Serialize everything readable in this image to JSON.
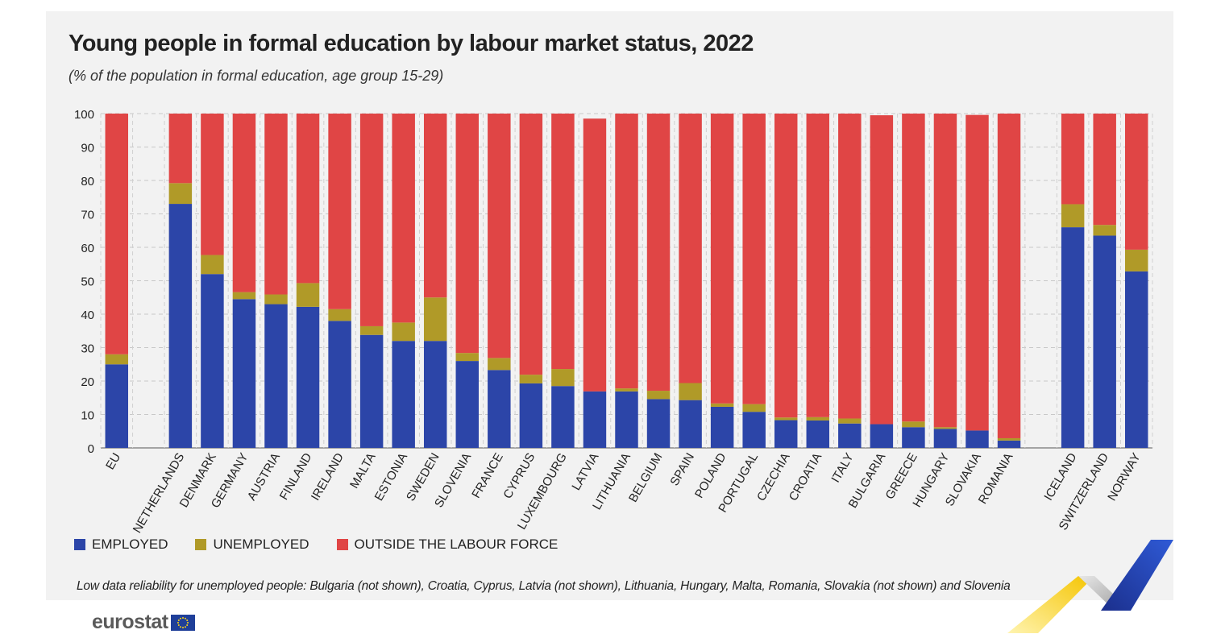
{
  "title": "Young people in formal education by labour market status, 2022",
  "subtitle": "(% of the population in formal education, age group 15-29)",
  "legend": {
    "employed": "EMPLOYED",
    "unemployed": "UNEMPLOYED",
    "outside": "OUTSIDE THE LABOUR FORCE"
  },
  "note": "Low data reliability for unemployed people: Bulgaria (not shown), Croatia, Cyprus, Latvia (not shown), Lithuania, Hungary, Malta, Romania, Slovakia (not shown) and Slovenia",
  "logo": {
    "text": "eurostat",
    "flag_icon": "eu-flag-icon"
  },
  "colors": {
    "employed": "#2c45a8",
    "unemployed": "#b09a28",
    "outside": "#e04545"
  },
  "chart_data": {
    "type": "bar",
    "stacked": true,
    "categories": [
      "EU",
      "NETHERLANDS",
      "DENMARK",
      "GERMANY",
      "AUSTRIA",
      "FINLAND",
      "IRELAND",
      "MALTA",
      "ESTONIA",
      "SWEDEN",
      "SLOVENIA",
      "FRANCE",
      "CYPRUS",
      "LUXEMBOURG",
      "LATVIA",
      "LITHUANIA",
      "BELGIUM",
      "SPAIN",
      "POLAND",
      "PORTUGAL",
      "CZECHIA",
      "CROATIA",
      "ITALY",
      "BULGARIA",
      "GREECE",
      "HUNGARY",
      "SLOVAKIA",
      "ROMANIA",
      "ICELAND",
      "SWITZERLAND",
      "NORWAY"
    ],
    "groups": [
      [
        "EU"
      ],
      [
        "NETHERLANDS",
        "DENMARK",
        "GERMANY",
        "AUSTRIA",
        "FINLAND",
        "IRELAND",
        "MALTA",
        "ESTONIA",
        "SWEDEN",
        "SLOVENIA",
        "FRANCE",
        "CYPRUS",
        "LUXEMBOURG",
        "LATVIA",
        "LITHUANIA",
        "BELGIUM",
        "SPAIN",
        "POLAND",
        "PORTUGAL",
        "CZECHIA",
        "CROATIA",
        "ITALY",
        "BULGARIA",
        "GREECE",
        "HUNGARY",
        "SLOVAKIA",
        "ROMANIA"
      ],
      [
        "ICELAND",
        "SWITZERLAND",
        "NORWAY"
      ]
    ],
    "series": [
      {
        "name": "EMPLOYED",
        "color": "#2c45a8",
        "values": [
          25.0,
          73.0,
          52.0,
          44.5,
          43.0,
          42.2,
          38.0,
          33.8,
          32.0,
          32.0,
          26.0,
          23.3,
          19.3,
          18.5,
          16.9,
          16.9,
          14.6,
          14.3,
          12.3,
          10.8,
          8.3,
          8.2,
          7.3,
          7.1,
          6.2,
          5.7,
          5.2,
          2.2,
          66.0,
          63.5,
          52.8
        ]
      },
      {
        "name": "UNEMPLOYED",
        "color": "#b09a28",
        "values": [
          3.0,
          6.2,
          5.7,
          2.1,
          2.9,
          7.1,
          3.5,
          2.6,
          5.5,
          13.0,
          2.4,
          3.6,
          2.6,
          5.1,
          0,
          0.9,
          2.5,
          5.1,
          1.0,
          2.3,
          0.8,
          1.0,
          1.5,
          0,
          1.7,
          0.5,
          0,
          0.7,
          6.9,
          3.2,
          6.5
        ]
      },
      {
        "name": "OUTSIDE THE LABOUR FORCE",
        "color": "#e04545",
        "values": [
          72.0,
          20.8,
          42.3,
          53.4,
          54.1,
          50.7,
          58.5,
          63.6,
          62.5,
          55.0,
          71.6,
          73.1,
          78.1,
          76.4,
          81.6,
          82.2,
          82.9,
          80.6,
          86.7,
          86.9,
          90.9,
          90.8,
          91.2,
          92.4,
          92.1,
          93.8,
          94.4,
          97.1,
          27.1,
          33.3,
          40.7
        ]
      }
    ],
    "yticks": [
      0,
      10,
      20,
      30,
      40,
      50,
      60,
      70,
      80,
      90,
      100
    ],
    "ylim": [
      0,
      100
    ],
    "grid": true,
    "legend_position": "bottom-left"
  }
}
